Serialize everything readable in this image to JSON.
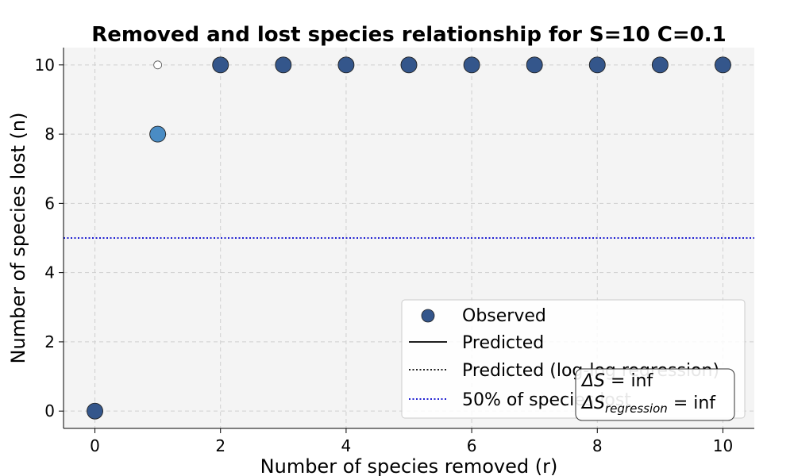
{
  "chart_data": {
    "type": "scatter",
    "title": "Removed and lost species relationship for S=10 C=0.1",
    "xlabel": "Number of species removed (r)",
    "ylabel": "Number of species lost (n)",
    "xlim": [
      -0.5,
      10.5
    ],
    "ylim": [
      -0.5,
      10.5
    ],
    "xticks": [
      0,
      2,
      4,
      6,
      8,
      10
    ],
    "yticks": [
      0,
      2,
      4,
      6,
      8,
      10
    ],
    "grid": true,
    "background": "#f4f4f4",
    "series": [
      {
        "name": "Observed",
        "marker": "circle",
        "color": "#34568b",
        "points": [
          {
            "x": 0,
            "y": 0,
            "color": "#34568b"
          },
          {
            "x": 1,
            "y": 8,
            "color": "#4a8cc4"
          },
          {
            "x": 1,
            "y": 10,
            "color": "#ffffff",
            "small": true
          },
          {
            "x": 2,
            "y": 10,
            "color": "#34568b"
          },
          {
            "x": 3,
            "y": 10,
            "color": "#34568b"
          },
          {
            "x": 4,
            "y": 10,
            "color": "#34568b"
          },
          {
            "x": 5,
            "y": 10,
            "color": "#34568b"
          },
          {
            "x": 6,
            "y": 10,
            "color": "#34568b"
          },
          {
            "x": 7,
            "y": 10,
            "color": "#34568b"
          },
          {
            "x": 8,
            "y": 10,
            "color": "#34568b"
          },
          {
            "x": 9,
            "y": 10,
            "color": "#34568b"
          },
          {
            "x": 10,
            "y": 10,
            "color": "#34568b"
          }
        ]
      },
      {
        "name": "Predicted",
        "style": "solid",
        "color": "#000000",
        "points": []
      },
      {
        "name": "Predicted (log-log regression)",
        "style": "dotted",
        "color": "#000000",
        "points": []
      },
      {
        "name": "50% of species lost",
        "style": "dotted",
        "color": "#0000cc",
        "hline": 5
      }
    ],
    "legend": {
      "position": "bottom-right",
      "entries": [
        "Observed",
        "Predicted",
        "Predicted (log-log regression)",
        "50% of species lost"
      ]
    },
    "annotation": {
      "position": "bottom-right",
      "delta_s_symbol": "ΔS",
      "delta_s_value": "= inf",
      "delta_s_reg_symbol": "ΔS",
      "delta_s_reg_sub": "regression",
      "delta_s_reg_value": "= inf"
    }
  }
}
